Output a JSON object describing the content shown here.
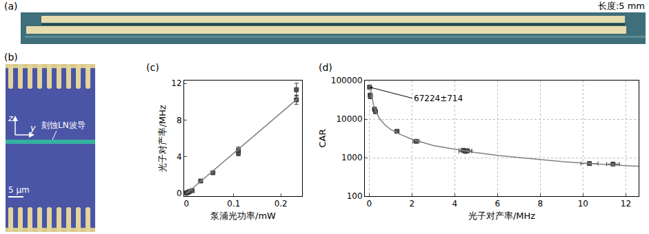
{
  "panels": {
    "a": {
      "letter": "(a)",
      "text": "长度:5 mm"
    },
    "b": {
      "letter": "(b)",
      "waveguide_label": "刻蚀LN波导",
      "axis_labels": [
        "z",
        "y"
      ],
      "scale_bar": "5 μm"
    }
  },
  "chart_data": [
    {
      "letter": "(c)",
      "type": "scatter",
      "x_label": "泵浦光功率/mW",
      "y_label": "光子对产率/MHz",
      "xlim": [
        -0.005,
        0.245
      ],
      "ylim": [
        -0.3,
        12.3
      ],
      "xticks": [
        0,
        0.1,
        0.2
      ],
      "yticks": [
        0,
        4,
        8,
        12
      ],
      "grid": false,
      "series": [
        {
          "type": "scatter",
          "marker": "square",
          "color": "#555555",
          "x": [
            0,
            0.003,
            0.006,
            0.012,
            0.03,
            0.056,
            0.11,
            0.11,
            0.233,
            0.233
          ],
          "values": [
            0.05,
            0.1,
            0.2,
            0.3,
            1.35,
            2.25,
            4.4,
            4.7,
            10.2,
            11.3
          ],
          "y_errors": [
            0.05,
            0.05,
            0.05,
            0.05,
            0.1,
            0.15,
            0.3,
            0.35,
            0.5,
            0.7
          ]
        },
        {
          "type": "line",
          "color": "#808080",
          "line_style": "solid",
          "x": [
            0,
            0.235
          ],
          "values": [
            0,
            10.3
          ]
        }
      ]
    },
    {
      "letter": "(d)",
      "type": "scatter",
      "x_label": "光子对产率/MHz",
      "y_label": "CAR",
      "log": "y",
      "grid": true,
      "xlim": [
        -0.2,
        12.6
      ],
      "ylim": [
        100,
        100000
      ],
      "xticks": [
        0,
        2,
        4,
        6,
        8,
        10,
        12
      ],
      "yticks": [
        100,
        1000,
        10000,
        100000
      ],
      "series": [
        {
          "type": "scatter",
          "marker": "square",
          "color": "#555555",
          "x": [
            0.02,
            0.05,
            0.06,
            0.25,
            0.3,
            1.3,
            2.2,
            4.4,
            4.5,
            4.6,
            10.3,
            11.4
          ],
          "values": [
            67224,
            42000,
            38000,
            18000,
            15500,
            4800,
            2650,
            1550,
            1450,
            1500,
            700,
            680
          ],
          "y_errors": [
            714,
            2000,
            1800,
            1200,
            900,
            200,
            100,
            60,
            60,
            60,
            30,
            30
          ],
          "x_errors": [
            0.01,
            0.01,
            0.01,
            0.02,
            0.02,
            0.1,
            0.15,
            0.2,
            0.3,
            0.2,
            0.4,
            0.3
          ]
        },
        {
          "type": "line",
          "color": "#808080",
          "line_style": "solid",
          "x": [
            0.05,
            0.1,
            0.2,
            0.3,
            0.5,
            0.75,
            1,
            1.5,
            2,
            3,
            4,
            5,
            6,
            7,
            8,
            9,
            10,
            11,
            12,
            12.6
          ],
          "values": [
            80000,
            45000,
            24000,
            16500,
            10000,
            7000,
            5400,
            3900,
            3000,
            2050,
            1650,
            1350,
            1140,
            1000,
            880,
            790,
            720,
            660,
            620,
            600
          ]
        }
      ],
      "annotations": [
        {
          "text": "67224±714",
          "x": 0.02,
          "y": 67224
        }
      ]
    }
  ]
}
